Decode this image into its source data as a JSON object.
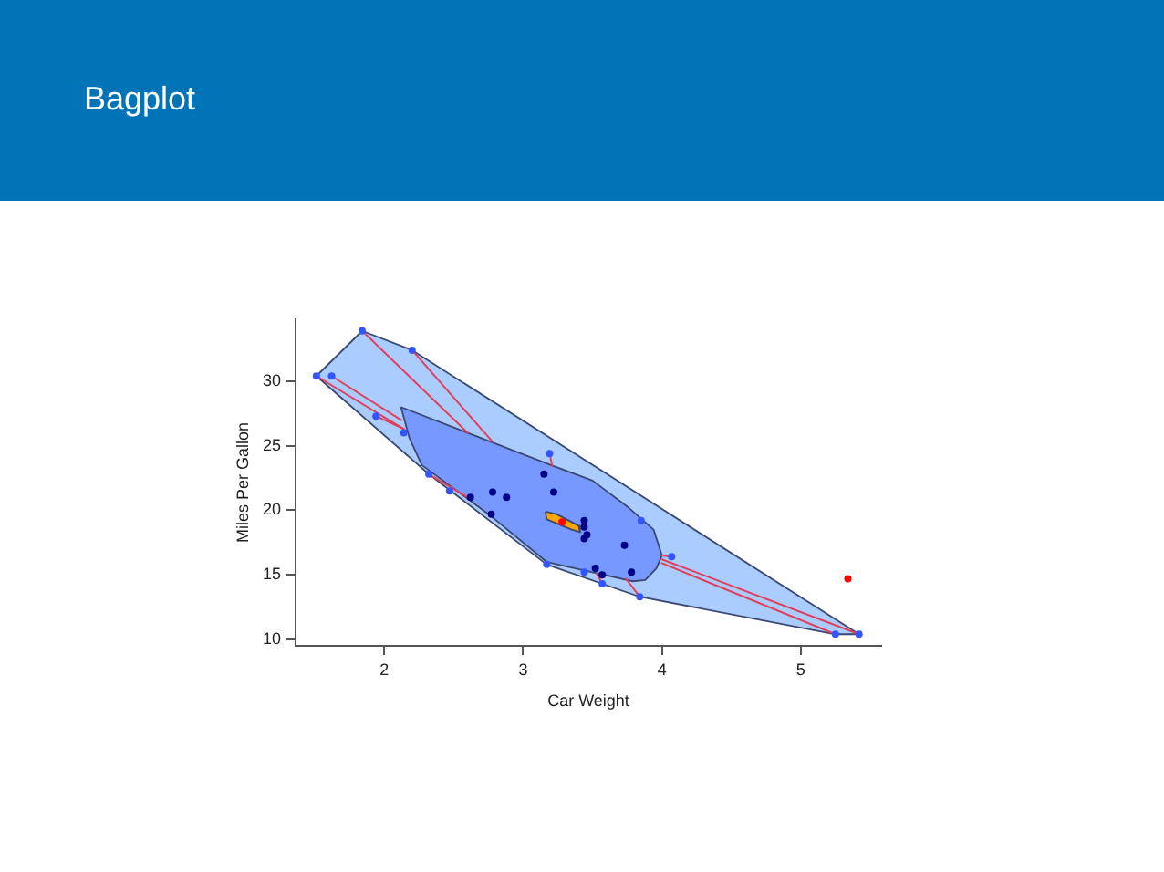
{
  "chart_data": {
    "type": "scatter",
    "title": "Bagplot",
    "xlabel": "Car Weight",
    "ylabel": "Miles Per Gallon",
    "xlim": [
      1.36,
      5.58
    ],
    "ylim": [
      9.5,
      34.8
    ],
    "xticks": [
      2,
      3,
      4,
      5
    ],
    "yticks": [
      10,
      15,
      20,
      25,
      30
    ],
    "series": [
      {
        "type": "area",
        "color": "#aaccff",
        "x": [
          1.51,
          1.84,
          2.2,
          5.42,
          5.25,
          3.84,
          3.17,
          2.32
        ],
        "values": [
          30.4,
          33.9,
          32.4,
          10.4,
          10.4,
          13.3,
          15.8,
          22.8
        ]
      },
      {
        "type": "area",
        "color": "#7799ff",
        "x": [
          2.12,
          3.2,
          3.5,
          3.76,
          3.94,
          4.0,
          3.96,
          3.88,
          3.79,
          3.5,
          3.17,
          2.75,
          2.27,
          2.18
        ],
        "values": [
          28.0,
          23.5,
          22.3,
          20.2,
          18.5,
          16.5,
          15.5,
          14.6,
          14.5,
          15.2,
          16.0,
          19.7,
          23.5,
          25.6
        ]
      },
      {
        "type": "area",
        "color": "#ffa500",
        "x": [
          3.16,
          3.24,
          3.4,
          3.41,
          3.35,
          3.17
        ],
        "values": [
          19.9,
          19.7,
          18.8,
          18.3,
          18.5,
          19.3
        ]
      },
      {
        "type": "line",
        "color": "#e0405a",
        "x": [
          1.84,
          2.6
        ],
        "values": [
          33.9,
          26.0
        ]
      },
      {
        "type": "line",
        "color": "#e0405a",
        "x": [
          2.2,
          2.78
        ],
        "values": [
          32.4,
          25.3
        ]
      },
      {
        "type": "line",
        "color": "#e0405a",
        "x": [
          1.51,
          2.14
        ],
        "values": [
          30.4,
          26.3
        ]
      },
      {
        "type": "line",
        "color": "#e0405a",
        "x": [
          1.62,
          2.12
        ],
        "values": [
          30.4,
          27.0
        ]
      },
      {
        "type": "line",
        "color": "#e0405a",
        "x": [
          1.94,
          2.14
        ],
        "values": [
          27.3,
          26.3
        ]
      },
      {
        "type": "line",
        "color": "#e0405a",
        "x": [
          2.32,
          2.6
        ],
        "values": [
          22.8,
          21.0
        ]
      },
      {
        "type": "line",
        "color": "#e0405a",
        "x": [
          3.19,
          3.21
        ],
        "values": [
          24.4,
          23.4
        ]
      },
      {
        "type": "line",
        "color": "#e0405a",
        "x": [
          4.07,
          4.0
        ],
        "values": [
          16.4,
          16.5
        ]
      },
      {
        "type": "line",
        "color": "#e0405a",
        "x": [
          3.57,
          3.53
        ],
        "values": [
          14.3,
          15.1
        ]
      },
      {
        "type": "line",
        "color": "#e0405a",
        "x": [
          3.84,
          3.74
        ],
        "values": [
          13.3,
          14.7
        ]
      },
      {
        "type": "line",
        "color": "#e0405a",
        "x": [
          5.42,
          4.0
        ],
        "values": [
          10.4,
          16.2
        ]
      },
      {
        "type": "line",
        "color": "#e0405a",
        "x": [
          5.25,
          4.0
        ],
        "values": [
          10.4,
          15.9
        ]
      },
      {
        "color": "#3355ff",
        "marker": "circle",
        "x": [
          1.84,
          2.2,
          1.51,
          1.62,
          1.94,
          2.14,
          2.32,
          2.47,
          3.19,
          3.85,
          4.07,
          3.17,
          3.44,
          3.57,
          3.84,
          5.25,
          5.42
        ],
        "values": [
          33.9,
          32.4,
          30.4,
          30.4,
          27.3,
          26.0,
          22.8,
          21.5,
          24.4,
          19.2,
          16.4,
          15.8,
          15.2,
          14.3,
          13.3,
          10.4,
          10.4
        ]
      },
      {
        "color": "#000088",
        "marker": "circle",
        "x": [
          2.62,
          2.88,
          3.22,
          3.44,
          3.46,
          3.15,
          3.44,
          3.44,
          3.73,
          3.78,
          3.52,
          2.77,
          3.57,
          2.78
        ],
        "values": [
          21.0,
          21.0,
          21.4,
          18.7,
          18.1,
          22.8,
          19.2,
          17.8,
          17.3,
          15.2,
          15.5,
          19.7,
          15.0,
          21.4
        ]
      },
      {
        "color": "#ff0000",
        "marker": "circle",
        "x": [
          5.34
        ],
        "values": [
          14.7
        ]
      },
      {
        "color": "#ff0000",
        "marker": "circle",
        "x": [
          3.28
        ],
        "values": [
          19.1
        ]
      }
    ]
  }
}
